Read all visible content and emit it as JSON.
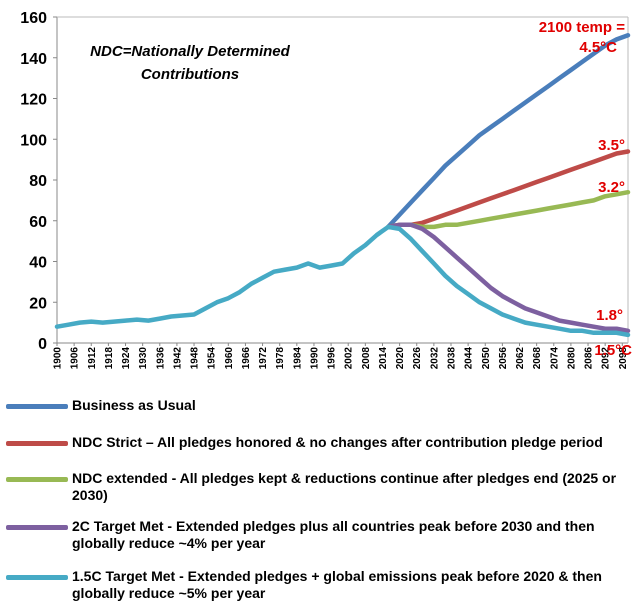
{
  "chart_data": {
    "type": "line",
    "note_box": [
      "NDC=Nationally Determined Contributions"
    ],
    "annotations": [
      "2100 temp =",
      "4.5°C",
      "3.5°",
      "3.2°",
      "1.8°",
      "1.5°C"
    ],
    "annotation_color": "#e00000",
    "x": [
      1900,
      1904,
      1908,
      1912,
      1916,
      1920,
      1924,
      1928,
      1932,
      1936,
      1940,
      1944,
      1948,
      1952,
      1956,
      1960,
      1964,
      1968,
      1972,
      1976,
      1980,
      1984,
      1988,
      1992,
      1996,
      2000,
      2004,
      2008,
      2012,
      2016,
      2020,
      2024,
      2028,
      2032,
      2036,
      2040,
      2044,
      2048,
      2052,
      2056,
      2060,
      2064,
      2068,
      2072,
      2076,
      2080,
      2084,
      2088,
      2092,
      2096,
      2100
    ],
    "xlim": [
      1900,
      2100
    ],
    "xticks": [
      1900,
      1906,
      1912,
      1918,
      1924,
      1930,
      1936,
      1942,
      1948,
      1954,
      1960,
      1966,
      1972,
      1978,
      1984,
      1990,
      1996,
      2002,
      2008,
      2014,
      2020,
      2026,
      2032,
      2038,
      2044,
      2050,
      2056,
      2062,
      2068,
      2074,
      2080,
      2086,
      2092,
      2098
    ],
    "ylim": [
      0,
      160
    ],
    "yticks": [
      0,
      20,
      40,
      60,
      80,
      100,
      120,
      140,
      160
    ],
    "grid": false,
    "series": [
      {
        "name": "Business as Usual",
        "color": "#4a7ebb",
        "values": [
          null,
          null,
          null,
          null,
          null,
          null,
          null,
          null,
          null,
          null,
          null,
          null,
          null,
          null,
          null,
          null,
          null,
          null,
          null,
          null,
          null,
          null,
          null,
          null,
          null,
          null,
          null,
          null,
          null,
          57,
          63,
          69,
          75,
          81,
          87,
          92,
          97,
          102,
          106,
          110,
          114,
          118,
          122,
          126,
          130,
          134,
          138,
          142,
          146,
          149,
          151
        ]
      },
      {
        "name": "NDC Strict – All pledges honored & no changes after contribution pledge period",
        "color": "#be4b48",
        "values": [
          null,
          null,
          null,
          null,
          null,
          null,
          null,
          null,
          null,
          null,
          null,
          null,
          null,
          null,
          null,
          null,
          null,
          null,
          null,
          null,
          null,
          null,
          null,
          null,
          null,
          null,
          null,
          null,
          null,
          57,
          58,
          58,
          59,
          61,
          63,
          65,
          67,
          69,
          71,
          73,
          75,
          77,
          79,
          81,
          83,
          85,
          87,
          89,
          91,
          93,
          94
        ]
      },
      {
        "name": "NDC extended - All pledges kept & reductions continue after pledges end (2025 or 2030)",
        "color": "#98b954",
        "values": [
          null,
          null,
          null,
          null,
          null,
          null,
          null,
          null,
          null,
          null,
          null,
          null,
          null,
          null,
          null,
          null,
          null,
          null,
          null,
          null,
          null,
          null,
          null,
          null,
          null,
          null,
          null,
          null,
          null,
          57,
          58,
          58,
          57,
          57,
          58,
          58,
          59,
          60,
          61,
          62,
          63,
          64,
          65,
          66,
          67,
          68,
          69,
          70,
          72,
          73,
          74
        ]
      },
      {
        "name": "2C Target Met - Extended pledges plus all countries peak before 2030 and then globally reduce ~4% per year",
        "color": "#7d60a0",
        "values": [
          null,
          null,
          null,
          null,
          null,
          null,
          null,
          null,
          null,
          null,
          null,
          null,
          null,
          null,
          null,
          null,
          null,
          null,
          null,
          null,
          null,
          null,
          null,
          null,
          null,
          null,
          null,
          null,
          null,
          57,
          58,
          58,
          56,
          52,
          47,
          42,
          37,
          32,
          27,
          23,
          20,
          17,
          15,
          13,
          11,
          10,
          9,
          8,
          7,
          7,
          6
        ]
      },
      {
        "name": "1.5C Target Met - Extended pledges + global emissions peak before 2020 & then globally reduce ~5% per year",
        "color": "#46aac5",
        "values": [
          8,
          9,
          10,
          10.5,
          10,
          10.5,
          11,
          11.5,
          11,
          12,
          13,
          13.5,
          14,
          17,
          20,
          22,
          25,
          29,
          32,
          35,
          36,
          37,
          39,
          37,
          38,
          39,
          44,
          48,
          53,
          57,
          56,
          51,
          45,
          39,
          33,
          28,
          24,
          20,
          17,
          14,
          12,
          10,
          9,
          8,
          7,
          6,
          6,
          5,
          5,
          5,
          4
        ]
      }
    ]
  }
}
